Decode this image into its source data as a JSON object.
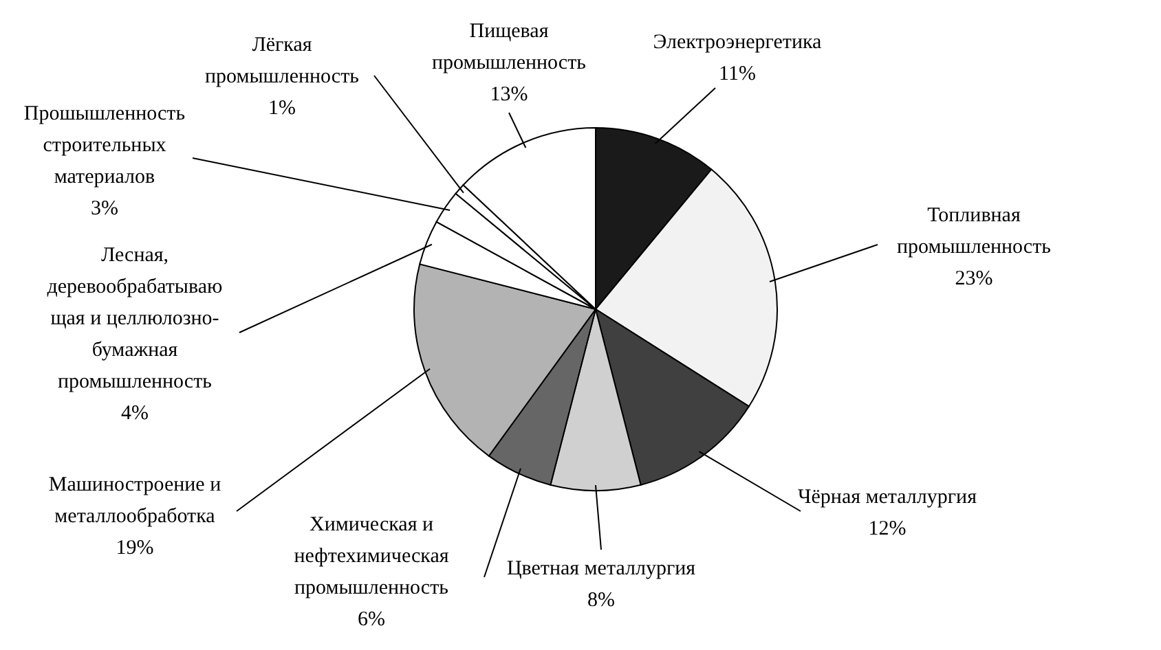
{
  "chart_data": {
    "type": "pie",
    "categories": [
      "Электроэнергетика",
      "Топливная\nпромышленность",
      "Чёрная металлургия",
      "Цветная металлургия",
      "Химическая и\nнефтехимическая\nпромышленность",
      "Машиностроение и\nметаллообработка",
      "Лесная,\nдеревообрабатываю\nщая и целлюлозно-\nбумажная\nпромышленность",
      "Прошышленность\nстроительных\nматериалов",
      "Лёгкая\nпромышленность",
      "Пищевая\nпромышленность"
    ],
    "values": [
      11,
      23,
      12,
      8,
      6,
      19,
      4,
      3,
      1,
      13
    ],
    "value_labels": [
      "11%",
      "23%",
      "12%",
      "8%",
      "6%",
      "19%",
      "4%",
      "3%",
      "1%",
      "13%"
    ],
    "colors": [
      "#1a1a1a",
      "#f2f2f2",
      "#404040",
      "#d0d0d0",
      "#666666",
      "#b3b3b3",
      "#ffffff",
      "#ffffff",
      "#ffffff",
      "#ffffff"
    ]
  }
}
